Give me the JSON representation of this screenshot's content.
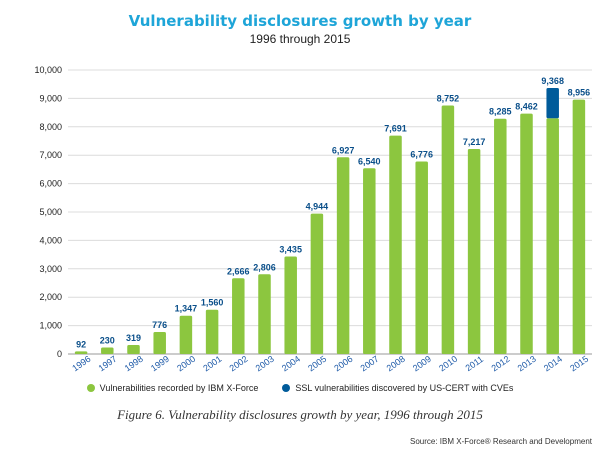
{
  "chart_data": {
    "type": "bar",
    "title": "Vulnerability disclosures growth by year",
    "subtitle": "1996 through 2015",
    "categories": [
      "1996",
      "1997",
      "1998",
      "1999",
      "2000",
      "2001",
      "2002",
      "2003",
      "2004",
      "2005",
      "2006",
      "2007",
      "2008",
      "2009",
      "2010",
      "2011",
      "2012",
      "2013",
      "2014",
      "2015"
    ],
    "totals": [
      92,
      230,
      319,
      776,
      1347,
      1560,
      2666,
      2806,
      3435,
      4944,
      6927,
      6540,
      7691,
      6776,
      8752,
      7217,
      8285,
      8462,
      9368,
      8956
    ],
    "total_labels": [
      "92",
      "230",
      "319",
      "776",
      "1,347",
      "1,560",
      "2,666",
      "2,806",
      "3,435",
      "4,944",
      "6,927",
      "6,540",
      "7,691",
      "6,776",
      "8,752",
      "7,217",
      "8,285",
      "8,462",
      "9,368",
      "8,956"
    ],
    "series": [
      {
        "name": "Vulnerabilities recorded by IBM X-Force",
        "color": "#8cc63f",
        "values": [
          92,
          230,
          319,
          776,
          1347,
          1560,
          2666,
          2806,
          3435,
          4944,
          6927,
          6540,
          7691,
          6776,
          8752,
          7217,
          8285,
          8462,
          8300,
          8956
        ]
      },
      {
        "name": "SSL vulnerabilities discovered by US-CERT with CVEs",
        "color": "#005b9a",
        "values": [
          0,
          0,
          0,
          0,
          0,
          0,
          0,
          0,
          0,
          0,
          0,
          0,
          0,
          0,
          0,
          0,
          0,
          0,
          1068,
          0
        ]
      }
    ],
    "ylim": [
      0,
      10000
    ],
    "yticks": [
      0,
      1000,
      2000,
      3000,
      4000,
      5000,
      6000,
      7000,
      8000,
      9000,
      10000
    ],
    "ytick_labels": [
      "0",
      "1,000",
      "2,000",
      "3,000",
      "4,000",
      "5,000",
      "6,000",
      "7,000",
      "8,000",
      "9,000",
      "10,000"
    ],
    "grid": true,
    "legend_position": "bottom",
    "label_color": "#0a4f8a"
  },
  "caption": "Figure 6. Vulnerability disclosures growth by year, 1996 through 2015",
  "source": "Source: IBM X-Force® Research and Development"
}
